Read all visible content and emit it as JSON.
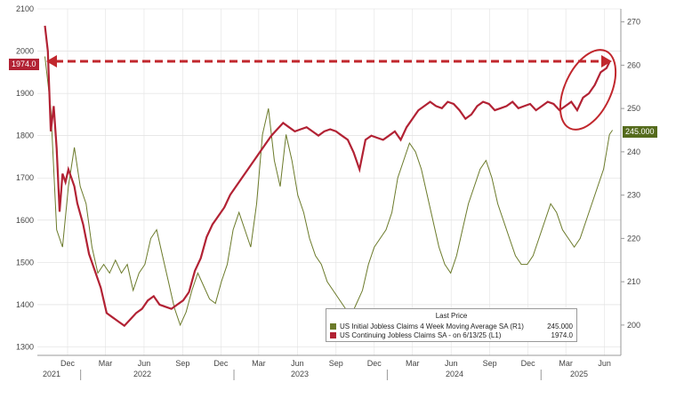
{
  "chart_data": {
    "type": "line",
    "title": "",
    "x_month_labels": [
      "Dec",
      "Mar",
      "Jun",
      "Sep",
      "Dec",
      "Mar",
      "Jun",
      "Sep",
      "Dec",
      "Mar",
      "Jun",
      "Sep",
      "Dec",
      "Mar",
      "Jun"
    ],
    "x_year_labels": [
      "2021",
      "2022",
      "2023",
      "2024",
      "2025"
    ],
    "left_axis": {
      "ylim": [
        1280,
        2100
      ],
      "ticks": [
        1300,
        1400,
        1500,
        1600,
        1700,
        1800,
        1900,
        2000,
        2100
      ]
    },
    "right_axis": {
      "ylim": [
        193,
        273
      ],
      "ticks": [
        200,
        210,
        220,
        230,
        240,
        250,
        260,
        270
      ]
    },
    "legend": {
      "title": "Last Price",
      "entries": [
        {
          "name": "US Initial Jobless Claims 4 Week Moving Average SA  (R1)",
          "value": "245.000",
          "color": "#6b7a2a"
        },
        {
          "name": "US Continuing Jobless Claims SA - on 6/13/25  (L1)",
          "value": "1974.0",
          "color": "#b22234"
        }
      ]
    },
    "tags": {
      "left": "1974.0",
      "right": "245.000"
    },
    "series": [
      {
        "name": "US Continuing Jobless Claims SA - on 6/13/25  (L1)",
        "axis": "left",
        "color": "#b22234",
        "x": [
          "2021-10-08",
          "2021-10-15",
          "2021-10-22",
          "2021-10-29",
          "2021-11-05",
          "2021-11-12",
          "2021-11-19",
          "2021-11-26",
          "2021-12-03",
          "2021-12-10",
          "2021-12-17",
          "2021-12-24",
          "2022-01-07",
          "2022-01-21",
          "2022-02-04",
          "2022-02-18",
          "2022-03-04",
          "2022-03-18",
          "2022-04-01",
          "2022-04-15",
          "2022-04-29",
          "2022-05-13",
          "2022-05-27",
          "2022-06-10",
          "2022-06-24",
          "2022-07-08",
          "2022-07-22",
          "2022-08-05",
          "2022-08-19",
          "2022-09-02",
          "2022-09-16",
          "2022-09-30",
          "2022-10-14",
          "2022-10-28",
          "2022-11-11",
          "2022-11-25",
          "2022-12-09",
          "2022-12-23",
          "2023-01-06",
          "2023-01-20",
          "2023-02-03",
          "2023-02-17",
          "2023-03-03",
          "2023-03-17",
          "2023-03-31",
          "2023-04-14",
          "2023-04-28",
          "2023-05-12",
          "2023-05-26",
          "2023-06-09",
          "2023-06-23",
          "2023-07-07",
          "2023-07-21",
          "2023-08-04",
          "2023-08-18",
          "2023-09-01",
          "2023-09-15",
          "2023-09-29",
          "2023-10-13",
          "2023-10-27",
          "2023-11-10",
          "2023-11-24",
          "2023-12-08",
          "2023-12-22",
          "2024-01-05",
          "2024-01-19",
          "2024-02-02",
          "2024-02-16",
          "2024-03-01",
          "2024-03-15",
          "2024-03-29",
          "2024-04-12",
          "2024-04-26",
          "2024-05-10",
          "2024-05-24",
          "2024-06-07",
          "2024-06-21",
          "2024-07-05",
          "2024-07-19",
          "2024-08-02",
          "2024-08-16",
          "2024-08-30",
          "2024-09-13",
          "2024-09-27",
          "2024-10-11",
          "2024-10-25",
          "2024-11-08",
          "2024-11-22",
          "2024-12-06",
          "2024-12-20",
          "2025-01-03",
          "2025-01-17",
          "2025-01-31",
          "2025-02-14",
          "2025-02-28",
          "2025-03-14",
          "2025-03-28",
          "2025-04-11",
          "2025-04-25",
          "2025-05-09",
          "2025-05-23",
          "2025-06-06",
          "2025-06-13"
        ],
        "values": [
          2060,
          2000,
          1810,
          1870,
          1770,
          1620,
          1710,
          1690,
          1720,
          1700,
          1680,
          1640,
          1590,
          1520,
          1480,
          1440,
          1380,
          1370,
          1360,
          1350,
          1365,
          1380,
          1390,
          1410,
          1420,
          1400,
          1395,
          1390,
          1400,
          1410,
          1430,
          1480,
          1510,
          1560,
          1590,
          1610,
          1630,
          1660,
          1680,
          1700,
          1720,
          1740,
          1760,
          1780,
          1800,
          1815,
          1830,
          1820,
          1810,
          1815,
          1820,
          1810,
          1800,
          1810,
          1815,
          1810,
          1800,
          1790,
          1760,
          1720,
          1790,
          1800,
          1795,
          1790,
          1800,
          1810,
          1790,
          1820,
          1840,
          1860,
          1870,
          1880,
          1870,
          1865,
          1880,
          1875,
          1860,
          1840,
          1850,
          1870,
          1880,
          1875,
          1860,
          1865,
          1870,
          1880,
          1865,
          1870,
          1875,
          1860,
          1870,
          1880,
          1875,
          1860,
          1870,
          1880,
          1860,
          1890,
          1900,
          1920,
          1950,
          1960,
          1974
        ]
      },
      {
        "name": "US Initial Jobless Claims 4 Week Moving Average SA  (R1)",
        "axis": "right",
        "color": "#6b7a2a",
        "x": [
          "2021-10-08",
          "2021-10-22",
          "2021-11-05",
          "2021-11-19",
          "2021-12-03",
          "2021-12-17",
          "2021-12-31",
          "2022-01-14",
          "2022-01-28",
          "2022-02-11",
          "2022-02-25",
          "2022-03-11",
          "2022-03-25",
          "2022-04-08",
          "2022-04-22",
          "2022-05-06",
          "2022-05-20",
          "2022-06-03",
          "2022-06-17",
          "2022-07-01",
          "2022-07-15",
          "2022-07-29",
          "2022-08-12",
          "2022-08-26",
          "2022-09-09",
          "2022-09-23",
          "2022-10-07",
          "2022-10-21",
          "2022-11-04",
          "2022-11-18",
          "2022-12-02",
          "2022-12-16",
          "2022-12-30",
          "2023-01-13",
          "2023-01-27",
          "2023-02-10",
          "2023-02-24",
          "2023-03-10",
          "2023-03-24",
          "2023-04-07",
          "2023-04-21",
          "2023-05-05",
          "2023-05-19",
          "2023-06-02",
          "2023-06-16",
          "2023-06-30",
          "2023-07-14",
          "2023-07-28",
          "2023-08-11",
          "2023-08-25",
          "2023-09-08",
          "2023-09-22",
          "2023-10-06",
          "2023-10-20",
          "2023-11-03",
          "2023-11-17",
          "2023-12-01",
          "2023-12-15",
          "2023-12-29",
          "2024-01-12",
          "2024-01-26",
          "2024-02-09",
          "2024-02-23",
          "2024-03-08",
          "2024-03-22",
          "2024-04-05",
          "2024-04-19",
          "2024-05-03",
          "2024-05-17",
          "2024-05-31",
          "2024-06-14",
          "2024-06-28",
          "2024-07-12",
          "2024-07-26",
          "2024-08-09",
          "2024-08-23",
          "2024-09-06",
          "2024-09-20",
          "2024-10-04",
          "2024-10-18",
          "2024-11-01",
          "2024-11-15",
          "2024-11-29",
          "2024-12-13",
          "2024-12-27",
          "2025-01-10",
          "2025-01-24",
          "2025-02-07",
          "2025-02-21",
          "2025-03-07",
          "2025-03-21",
          "2025-04-04",
          "2025-04-18",
          "2025-05-02",
          "2025-05-16",
          "2025-05-30",
          "2025-06-13",
          "2025-06-20"
        ],
        "values": [
          262,
          250,
          222,
          218,
          232,
          241,
          232,
          228,
          218,
          212,
          214,
          212,
          215,
          212,
          214,
          208,
          212,
          214,
          220,
          222,
          216,
          210,
          204,
          200,
          203,
          208,
          212,
          209,
          206,
          205,
          210,
          214,
          222,
          226,
          222,
          218,
          228,
          244,
          250,
          238,
          232,
          244,
          238,
          230,
          226,
          220,
          216,
          214,
          210,
          208,
          206,
          204,
          202,
          205,
          208,
          214,
          218,
          220,
          222,
          226,
          234,
          238,
          242,
          240,
          236,
          230,
          224,
          218,
          214,
          212,
          216,
          222,
          228,
          232,
          236,
          238,
          234,
          228,
          224,
          220,
          216,
          214,
          214,
          216,
          220,
          224,
          228,
          226,
          222,
          220,
          218,
          220,
          224,
          228,
          232,
          236,
          244,
          245
        ]
      }
    ]
  }
}
